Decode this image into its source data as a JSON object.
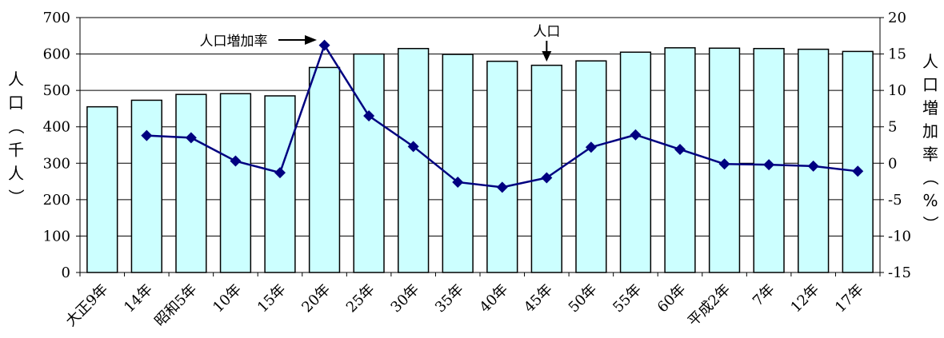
{
  "chart_data": {
    "type": "bar",
    "categories": [
      "大正9年",
      "14年",
      "昭和5年",
      "10年",
      "15年",
      "20年",
      "25年",
      "30年",
      "35年",
      "40年",
      "45年",
      "50年",
      "55年",
      "60年",
      "平成2年",
      "7年",
      "12年",
      "17年"
    ],
    "series": [
      {
        "name": "人口",
        "type": "bar",
        "axis": "left",
        "values": [
          455,
          473,
          489,
          491,
          485,
          563,
          600,
          615,
          599,
          580,
          569,
          581,
          605,
          617,
          616,
          615,
          613,
          607
        ]
      },
      {
        "name": "人口増加率",
        "type": "line",
        "axis": "right",
        "values": [
          null,
          3.8,
          3.5,
          0.3,
          -1.3,
          16.2,
          6.5,
          2.3,
          -2.6,
          -3.3,
          -2.0,
          2.2,
          3.9,
          1.9,
          -0.1,
          -0.2,
          -0.4,
          -1.1
        ]
      }
    ],
    "ylabel_left": "人口（千人）",
    "ylabel_right": "人口増加率（%）",
    "ylim_left": [
      0,
      700
    ],
    "ylim_right": [
      -15,
      20
    ],
    "yticks_left": [
      "0",
      "100",
      "200",
      "300",
      "400",
      "500",
      "600",
      "700"
    ],
    "yticks_right": [
      "-15",
      "-10",
      "-5",
      "0",
      "5",
      "10",
      "15",
      "20"
    ],
    "grid": "horizontal",
    "annotations": [
      {
        "text": "人口増加率",
        "target_series": "人口増加率",
        "target_index": 5
      },
      {
        "text": "人口",
        "target_series": "人口",
        "target_index": 10
      }
    ],
    "colors": {
      "bar_fill": "#ccffff",
      "bar_stroke": "#000000",
      "line": "#000080",
      "marker": "#000080"
    }
  }
}
